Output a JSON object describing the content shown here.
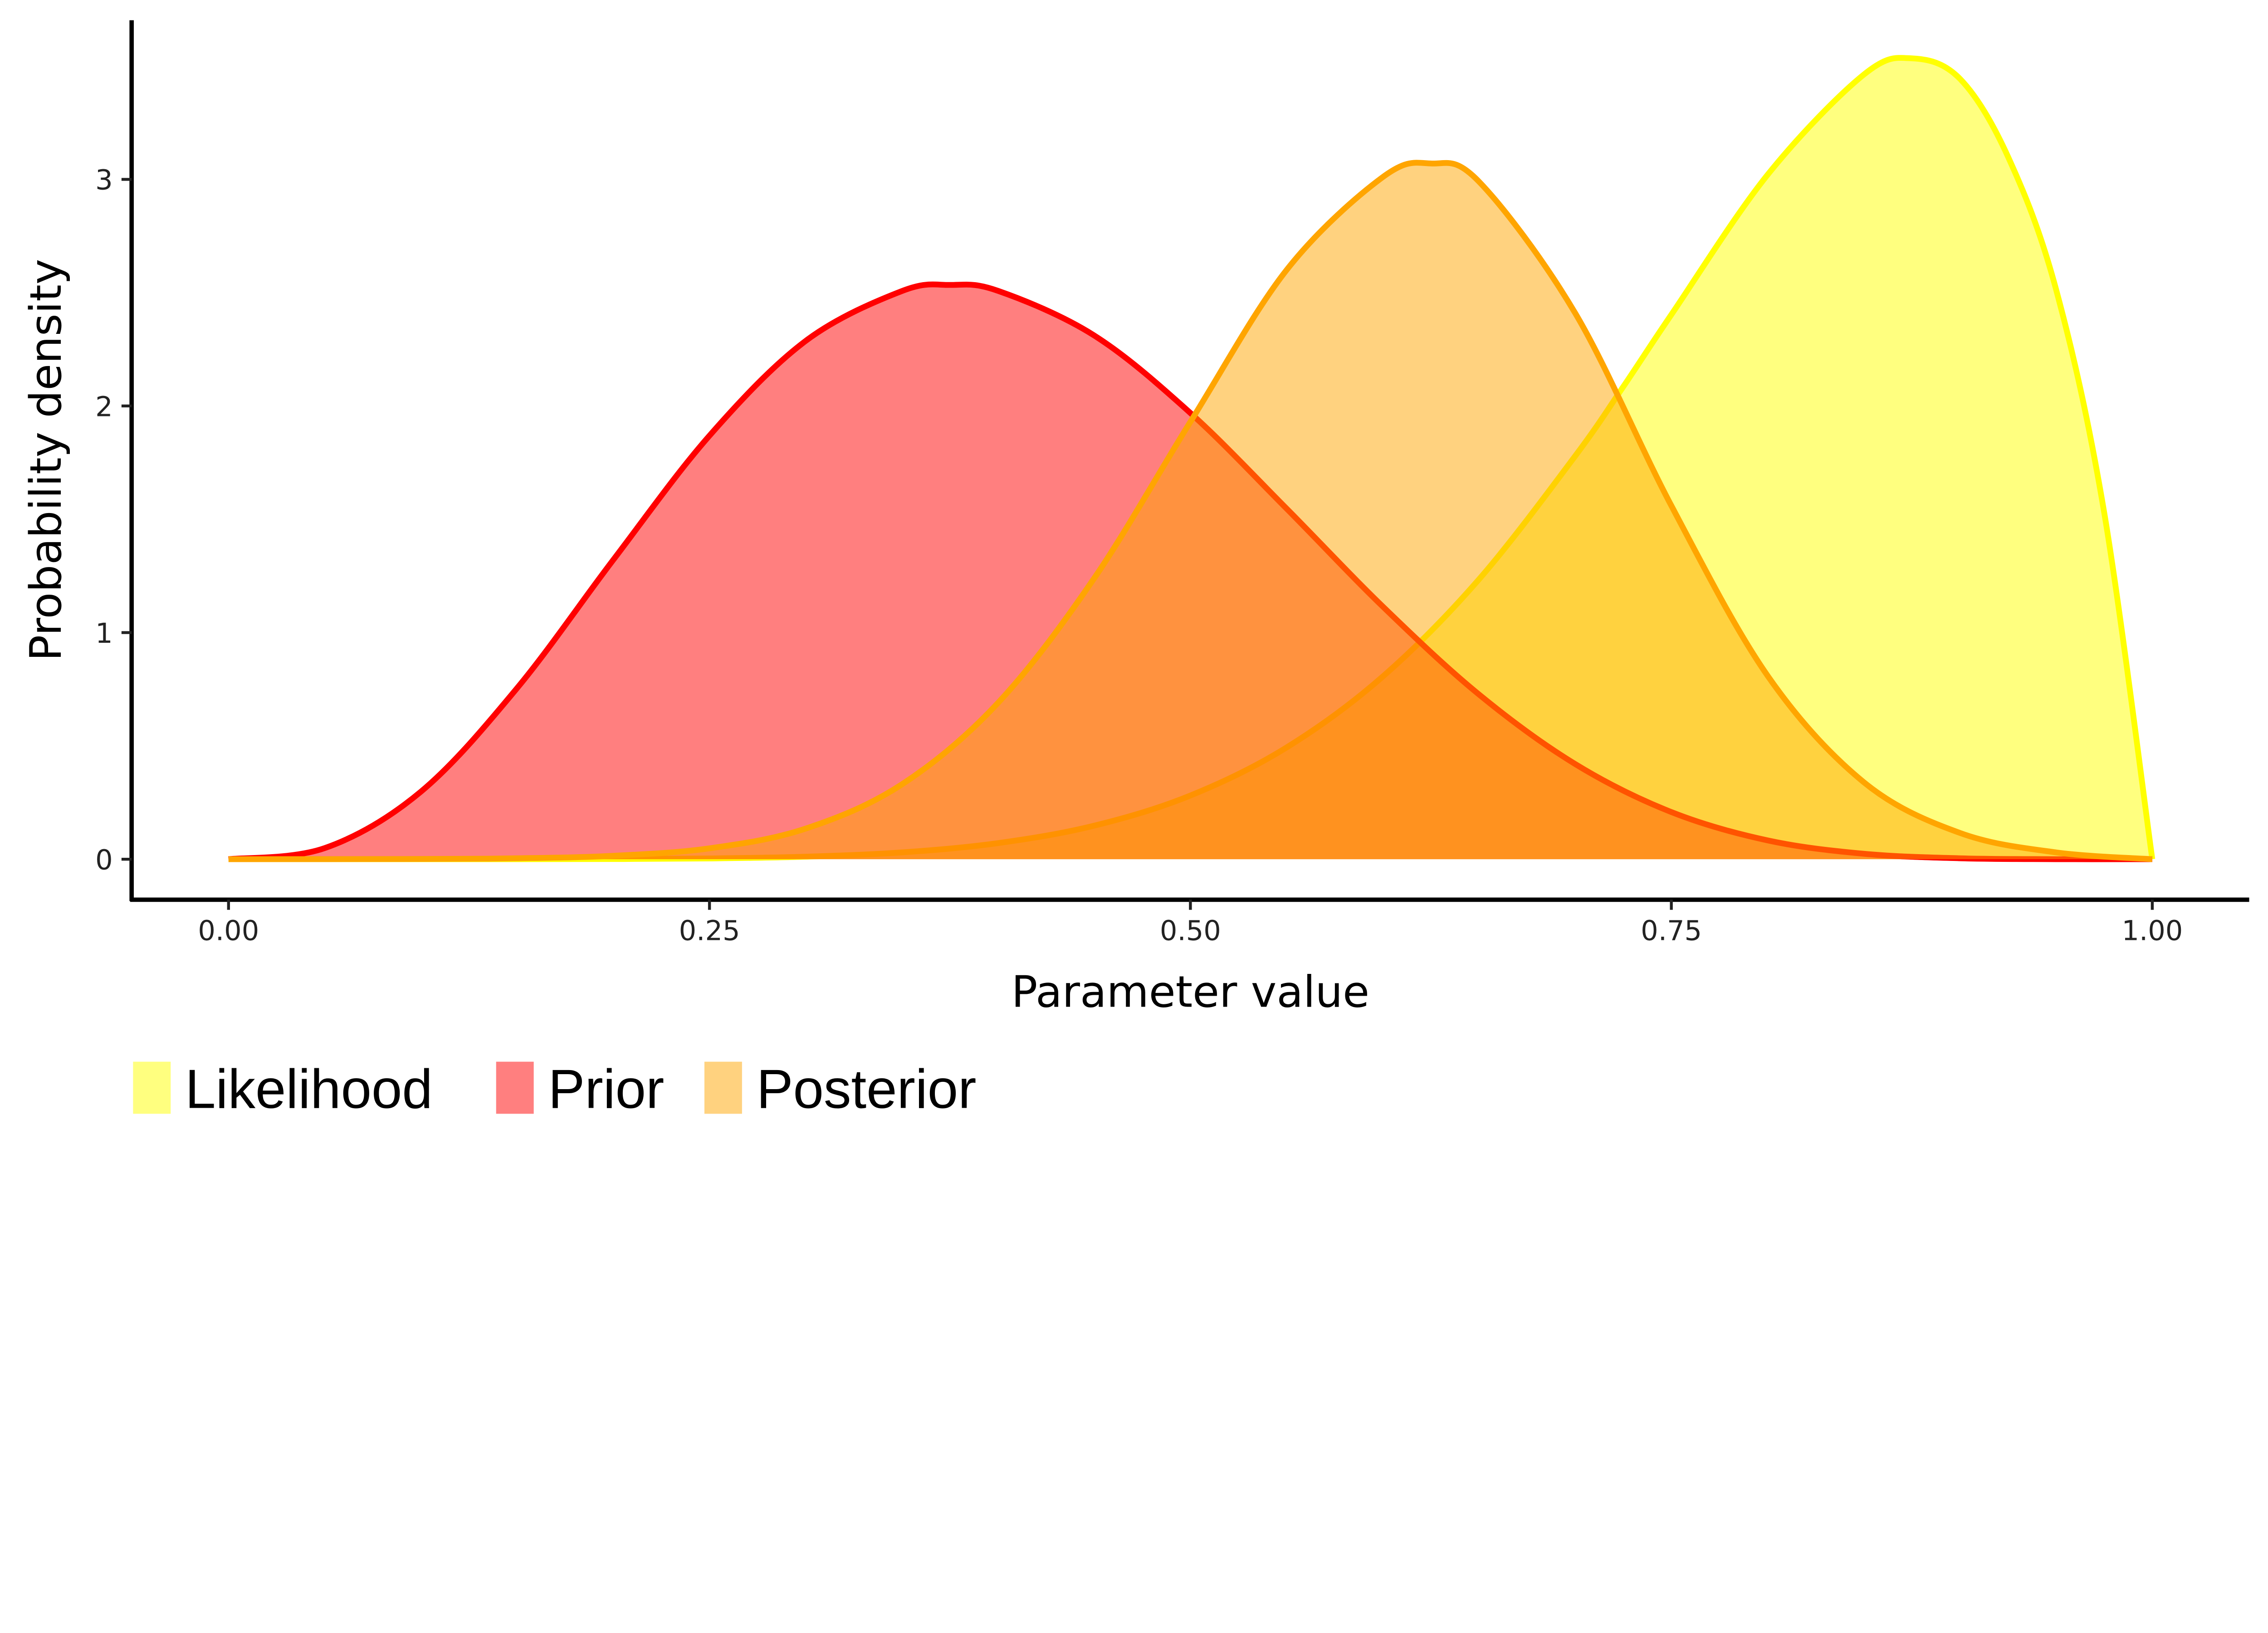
{
  "chart_data": {
    "type": "area",
    "xlabel": "Parameter value",
    "ylabel": "Probability density",
    "xlim": [
      0,
      1
    ],
    "ylim": [
      -0.18,
      3.7
    ],
    "x_ticks": [
      "0.00",
      "0.25",
      "0.50",
      "0.75",
      "1.00"
    ],
    "y_ticks": [
      "0",
      "1",
      "2",
      "3"
    ],
    "grid": false,
    "legend_position": "bottom-left",
    "series": [
      {
        "name": "Likelihood",
        "line_color": "#FFFF00",
        "fill_color": "#FFFF00",
        "x": [
          0,
          0.05,
          0.1,
          0.15,
          0.2,
          0.25,
          0.3,
          0.35,
          0.4,
          0.45,
          0.5,
          0.55,
          0.6,
          0.65,
          0.7,
          0.725,
          0.75,
          0.8,
          0.85,
          0.875,
          0.9,
          0.925,
          0.95,
          0.975,
          1.0
        ],
        "y": [
          0,
          0,
          0,
          0,
          0.0007,
          0.0033,
          0.011,
          0.03,
          0.071,
          0.148,
          0.281,
          0.493,
          0.806,
          1.235,
          1.779,
          2.085,
          2.403,
          3.02,
          3.462,
          3.534,
          3.444,
          3.1,
          2.514,
          1.53,
          0
        ]
      },
      {
        "name": "Prior",
        "line_color": "#FF0000",
        "fill_color": "#FF0000",
        "x": [
          0,
          0.05,
          0.1,
          0.15,
          0.2,
          0.25,
          0.3,
          0.35,
          0.375,
          0.4,
          0.45,
          0.5,
          0.55,
          0.6,
          0.65,
          0.7,
          0.75,
          0.8,
          0.85,
          0.9,
          0.95,
          1.0
        ],
        "y": [
          0,
          0.049,
          0.298,
          0.755,
          1.321,
          1.869,
          2.287,
          2.507,
          2.534,
          2.508,
          2.311,
          1.969,
          1.547,
          1.115,
          0.727,
          0.42,
          0.208,
          0.083,
          0.024,
          0.004,
          0.0001,
          0
        ]
      },
      {
        "name": "Posterior",
        "line_color": "#FFA500",
        "fill_color": "#FFA500",
        "x": [
          0,
          0.1,
          0.15,
          0.2,
          0.25,
          0.3,
          0.35,
          0.4,
          0.45,
          0.5,
          0.55,
          0.6,
          0.625,
          0.65,
          0.7,
          0.75,
          0.8,
          0.85,
          0.9,
          0.95,
          1.0
        ],
        "y": [
          0,
          0.001,
          0.004,
          0.015,
          0.048,
          0.135,
          0.33,
          0.69,
          1.24,
          1.93,
          2.6,
          3.01,
          3.07,
          2.99,
          2.41,
          1.56,
          0.81,
          0.34,
          0.116,
          0.03,
          0
        ]
      }
    ]
  }
}
